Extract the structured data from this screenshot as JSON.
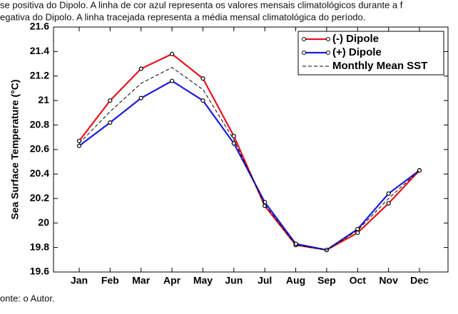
{
  "caption_top": [
    "se positiva do Dipolo. A linha de cor azul representa os valores mensais climatológicos durante a f",
    "egativa do Dipolo. A linha tracejada representa a média mensal climatológica do período."
  ],
  "caption_bottom": "onte: o Autor.",
  "chart_data": {
    "type": "line",
    "y_label": "Sea Surface Temperature (°C)",
    "categories": [
      "Jan",
      "Feb",
      "Mar",
      "Apr",
      "May",
      "Jun",
      "Jul",
      "Aug",
      "Sep",
      "Oct",
      "Nov",
      "Dec"
    ],
    "series": [
      {
        "name": "(-) Dipole",
        "color": "#e8141c",
        "style": "solid",
        "markers": true,
        "values": [
          20.67,
          21.0,
          21.26,
          21.38,
          21.18,
          20.71,
          20.14,
          19.82,
          19.78,
          19.92,
          20.16,
          20.43
        ]
      },
      {
        "name": "(+) Dipole",
        "color": "#1a1adc",
        "style": "solid",
        "markers": true,
        "values": [
          20.63,
          20.82,
          21.02,
          21.16,
          21.0,
          20.65,
          20.17,
          19.83,
          19.78,
          19.95,
          20.24,
          20.43
        ]
      },
      {
        "name": "Monthly Mean SST",
        "color": "#000000",
        "style": "dashed",
        "markers": false,
        "values": [
          20.65,
          20.91,
          21.14,
          21.27,
          21.09,
          20.68,
          20.15,
          19.82,
          19.78,
          19.94,
          20.2,
          20.43
        ]
      }
    ],
    "ylim": [
      19.6,
      21.6
    ],
    "yticks": [
      19.6,
      19.8,
      20,
      20.2,
      20.4,
      20.6,
      20.8,
      21,
      21.2,
      21.4,
      21.6
    ],
    "legend": "upper right"
  }
}
